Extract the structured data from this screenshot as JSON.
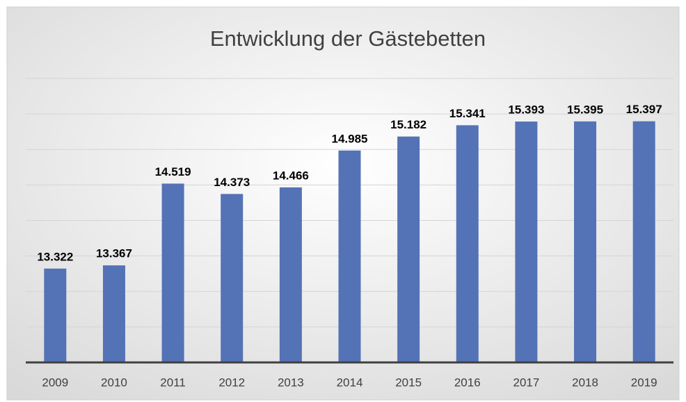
{
  "chart_data": {
    "type": "bar",
    "title": "Entwicklung der Gästebetten",
    "categories": [
      "2009",
      "2010",
      "2011",
      "2012",
      "2013",
      "2014",
      "2015",
      "2016",
      "2017",
      "2018",
      "2019"
    ],
    "values": [
      13322,
      13367,
      14519,
      14373,
      14466,
      14985,
      15182,
      15341,
      15393,
      15395,
      15397
    ],
    "value_labels": [
      "13.322",
      "13.367",
      "14.519",
      "14.373",
      "14.466",
      "14.985",
      "15.182",
      "15.341",
      "15.393",
      "15.395",
      "15.397"
    ],
    "color": "#5472b6",
    "ylim": [
      12000,
      16000
    ],
    "yticks": [
      12000,
      12500,
      13000,
      13500,
      14000,
      14500,
      15000,
      15500,
      16000
    ],
    "grid": true
  }
}
